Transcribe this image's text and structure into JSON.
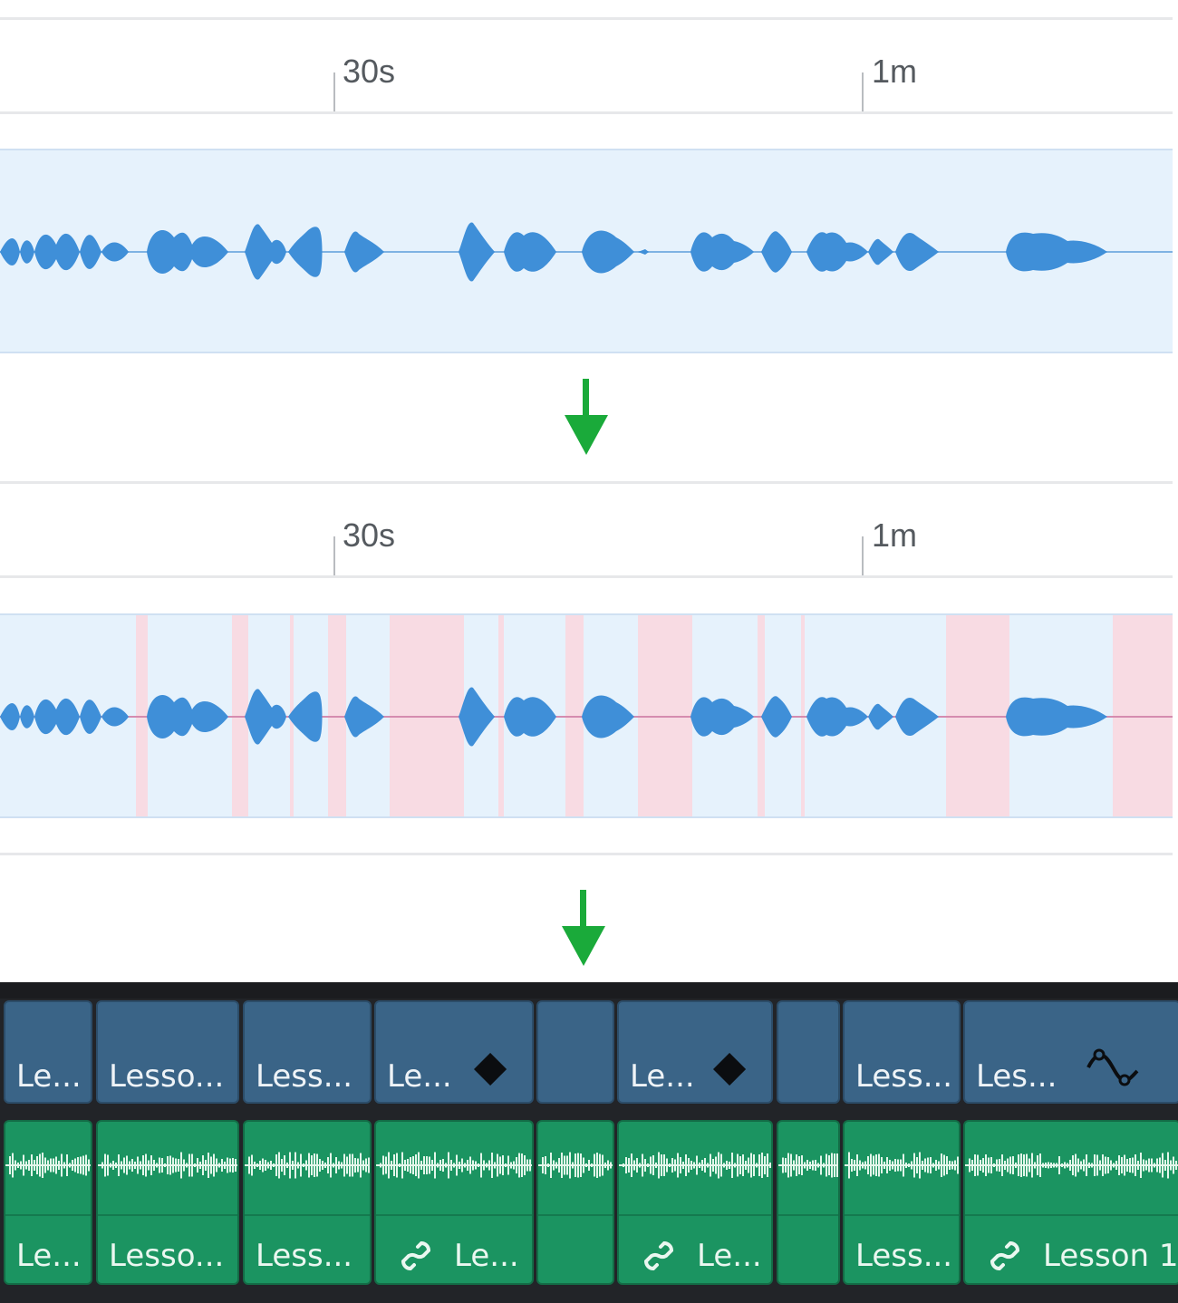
{
  "ruler_top": {
    "ticks": [
      {
        "label": "30s"
      },
      {
        "label": "1m"
      }
    ]
  },
  "ruler_mid": {
    "ticks": [
      {
        "label": "30s"
      },
      {
        "label": "1m"
      }
    ]
  },
  "colors": {
    "arrow": "#1aaa3a",
    "waveform": "#3f8fd8",
    "track_bg": "#e6f2fc",
    "silence": "#f8dbe3",
    "video_clip": "#3a6487",
    "audio_clip": "#1b9461"
  },
  "timeline": {
    "video_clips": [
      {
        "label": "Le...",
        "icon": ""
      },
      {
        "label": "Lesso...",
        "icon": ""
      },
      {
        "label": "Less...",
        "icon": ""
      },
      {
        "label": "Le...",
        "icon": "keyframe-diamond-icon"
      },
      {
        "label": "",
        "icon": ""
      },
      {
        "label": "Le...",
        "icon": "keyframe-diamond-icon"
      },
      {
        "label": "",
        "icon": ""
      },
      {
        "label": "Less...",
        "icon": ""
      },
      {
        "label": "Les...",
        "icon": "curve-keyframe-icon"
      }
    ],
    "audio_clips": [
      {
        "label": "Le...",
        "icon": ""
      },
      {
        "label": "Lesso...",
        "icon": ""
      },
      {
        "label": "Less...",
        "icon": ""
      },
      {
        "label": "Le...",
        "icon": "link-icon"
      },
      {
        "label": "",
        "icon": ""
      },
      {
        "label": "Le...",
        "icon": "link-icon"
      },
      {
        "label": "",
        "icon": ""
      },
      {
        "label": "Less...",
        "icon": ""
      },
      {
        "label": "Lesson 1",
        "icon": "link-icon"
      }
    ]
  }
}
